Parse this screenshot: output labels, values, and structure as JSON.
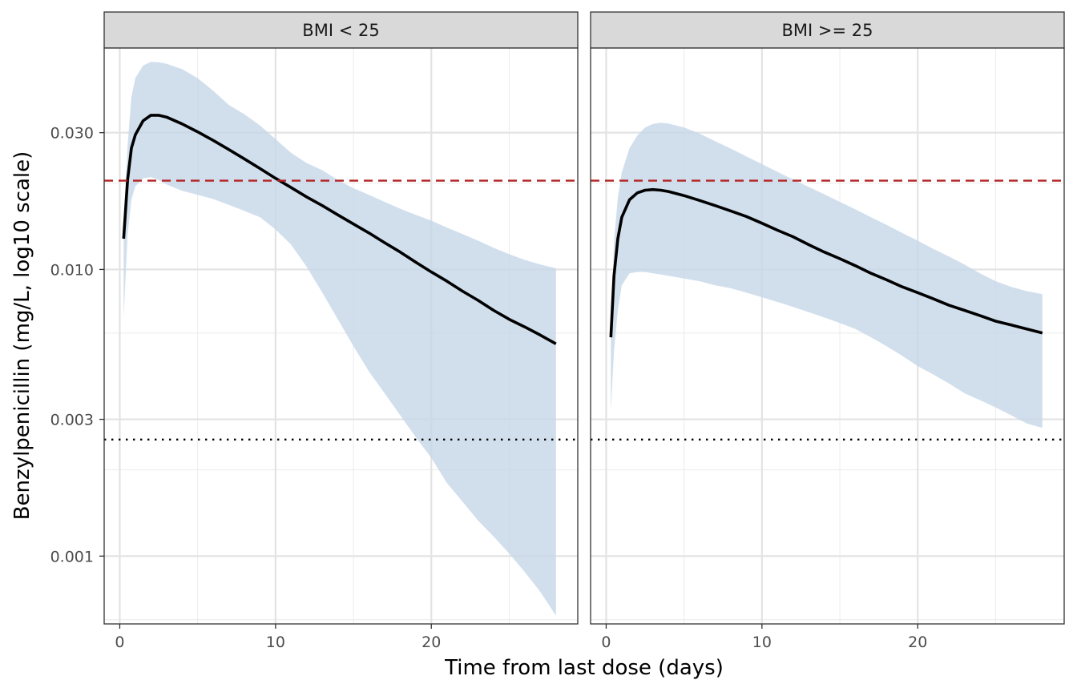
{
  "chart_data": {
    "type": "line",
    "xlabel": "Time from last dose (days)",
    "ylabel": "Benzylpenicillin (mg/L, log10 scale)",
    "y_scale": "log10",
    "xlim": [
      -1,
      29.4
    ],
    "ylim": [
      0.00058,
      0.0592
    ],
    "x_ticks": [
      0,
      10,
      20
    ],
    "x_tick_labels": [
      "0",
      "10",
      "20"
    ],
    "y_ticks": [
      0.001,
      0.003,
      0.01,
      0.03
    ],
    "y_tick_labels": [
      "0.001",
      "0.003",
      "0.010",
      "0.030"
    ],
    "grid": true,
    "reference_lines": [
      {
        "style": "dashed",
        "color": "#b22222",
        "y": 0.0204
      },
      {
        "style": "dotted",
        "color": "#000000",
        "y": 0.00255
      }
    ],
    "colors": {
      "ribbon": "#c6d7e9",
      "median_line": "#000000",
      "strip_background": "#d9d9d9"
    },
    "panels": [
      {
        "strip_label": "BMI < 25",
        "median": {
          "x": [
            0.25,
            0.5,
            0.75,
            1,
            1.5,
            2,
            2.5,
            3,
            4,
            5,
            6,
            7,
            8,
            9,
            10,
            11,
            12,
            13,
            14,
            15,
            16,
            17,
            18,
            19,
            20,
            21,
            22,
            23,
            24,
            25,
            26,
            27,
            28
          ],
          "y": [
            0.0128,
            0.0205,
            0.0265,
            0.0295,
            0.033,
            0.0345,
            0.0345,
            0.034,
            0.0322,
            0.0302,
            0.0282,
            0.0262,
            0.0243,
            0.0225,
            0.0208,
            0.0193,
            0.0179,
            0.0167,
            0.0155,
            0.0144,
            0.0134,
            0.0124,
            0.0115,
            0.0106,
            0.0098,
            0.0091,
            0.0084,
            0.0078,
            0.0072,
            0.0067,
            0.0063,
            0.0059,
            0.0055
          ]
        },
        "ribbon": {
          "x": [
            0.25,
            0.5,
            0.75,
            1,
            1.5,
            2,
            2.5,
            3,
            4,
            5,
            6,
            7,
            8,
            9,
            10,
            11,
            12,
            13,
            14,
            15,
            16,
            17,
            18,
            19,
            20,
            21,
            22,
            23,
            24,
            25,
            26,
            27,
            28
          ],
          "lower": [
            0.0068,
            0.0132,
            0.0175,
            0.0195,
            0.0208,
            0.021,
            0.0205,
            0.0198,
            0.0188,
            0.0182,
            0.0176,
            0.0168,
            0.016,
            0.0152,
            0.0138,
            0.0122,
            0.0102,
            0.0083,
            0.0067,
            0.0054,
            0.0044,
            0.0037,
            0.0031,
            0.0026,
            0.0022,
            0.0018,
            0.00155,
            0.00133,
            0.00117,
            0.00102,
            0.00088,
            0.00075,
            0.00062
          ],
          "upper": [
            0.0145,
            0.027,
            0.04,
            0.0465,
            0.0515,
            0.053,
            0.0528,
            0.0522,
            0.05,
            0.0465,
            0.042,
            0.0375,
            0.0348,
            0.0318,
            0.0285,
            0.0255,
            0.0235,
            0.0222,
            0.0205,
            0.0192,
            0.0182,
            0.0172,
            0.0163,
            0.0155,
            0.0148,
            0.014,
            0.0133,
            0.0126,
            0.0119,
            0.0113,
            0.0108,
            0.0104,
            0.0101
          ]
        }
      },
      {
        "strip_label": "BMI >= 25",
        "median": {
          "x": [
            0.3,
            0.5,
            0.75,
            1,
            1.5,
            2,
            2.5,
            3,
            3.5,
            4,
            5,
            6,
            7,
            8,
            9,
            10,
            11,
            12,
            13,
            14,
            15,
            16,
            17,
            18,
            19,
            20,
            21,
            22,
            23,
            24,
            25,
            26,
            27,
            28
          ],
          "y": [
            0.0058,
            0.0095,
            0.0128,
            0.0152,
            0.0175,
            0.0185,
            0.0189,
            0.019,
            0.0189,
            0.0187,
            0.0181,
            0.0174,
            0.0167,
            0.016,
            0.0153,
            0.0145,
            0.0137,
            0.013,
            0.0122,
            0.0115,
            0.0109,
            0.0103,
            0.0097,
            0.0092,
            0.0087,
            0.0083,
            0.0079,
            0.0075,
            0.0072,
            0.0069,
            0.0066,
            0.0064,
            0.0062,
            0.006
          ]
        },
        "ribbon": {
          "x": [
            0.3,
            0.5,
            0.75,
            1,
            1.5,
            2,
            2.5,
            3,
            3.5,
            4,
            5,
            6,
            7,
            8,
            9,
            10,
            11,
            12,
            13,
            14,
            15,
            16,
            17,
            18,
            19,
            20,
            21,
            22,
            23,
            24,
            25,
            26,
            27,
            28
          ],
          "lower": [
            0.0032,
            0.0052,
            0.0072,
            0.0088,
            0.0097,
            0.0098,
            0.0098,
            0.0097,
            0.0096,
            0.0095,
            0.0093,
            0.0091,
            0.0088,
            0.0086,
            0.0083,
            0.008,
            0.0077,
            0.0074,
            0.0071,
            0.0068,
            0.0065,
            0.0062,
            0.0058,
            0.0054,
            0.005,
            0.0046,
            0.0043,
            0.004,
            0.0037,
            0.0035,
            0.0033,
            0.0031,
            0.0029,
            0.0028
          ],
          "upper": [
            0.0058,
            0.0125,
            0.0178,
            0.0218,
            0.0265,
            0.0293,
            0.0313,
            0.0322,
            0.0325,
            0.0323,
            0.0313,
            0.0298,
            0.028,
            0.0264,
            0.0248,
            0.0233,
            0.0219,
            0.0206,
            0.0194,
            0.0183,
            0.0172,
            0.0162,
            0.0152,
            0.0143,
            0.0134,
            0.0126,
            0.0118,
            0.0111,
            0.0104,
            0.0097,
            0.0091,
            0.0087,
            0.0084,
            0.0082
          ]
        }
      }
    ]
  }
}
